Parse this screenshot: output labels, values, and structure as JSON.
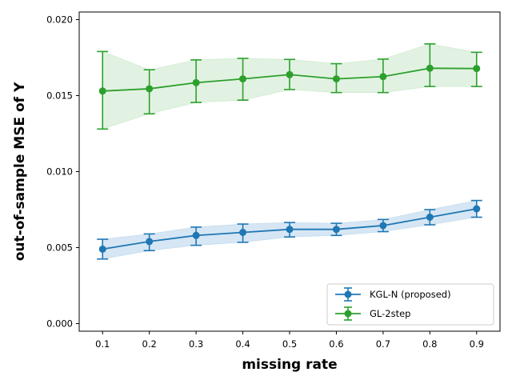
{
  "chart_data": {
    "type": "line",
    "title": "",
    "xlabel": "missing rate",
    "ylabel": "out-of-sample MSE of Y",
    "x": [
      0.1,
      0.2,
      0.3,
      0.4,
      0.5,
      0.6,
      0.7,
      0.8,
      0.9
    ],
    "x_tick_labels": [
      "0.1",
      "0.2",
      "0.3",
      "0.4",
      "0.5",
      "0.6",
      "0.7",
      "0.8",
      "0.9"
    ],
    "y_ticks": [
      0.0,
      0.005,
      0.01,
      0.015,
      0.02
    ],
    "y_tick_labels": [
      "0.000",
      "0.005",
      "0.010",
      "0.015",
      "0.020"
    ],
    "xlim": [
      0.05,
      0.95
    ],
    "ylim": [
      -0.0005,
      0.0205
    ],
    "grid": false,
    "legend_position": "lower-right",
    "series": [
      {
        "name": "KGL-N (proposed)",
        "color": "#1f77b4",
        "fill_color": "#d6e6f4",
        "values": [
          0.0049,
          0.0054,
          0.0058,
          0.006,
          0.0062,
          0.0062,
          0.00645,
          0.007,
          0.00755
        ],
        "err_low": [
          0.00425,
          0.0048,
          0.00515,
          0.00535,
          0.0057,
          0.0058,
          0.00605,
          0.0065,
          0.007
        ],
        "err_high": [
          0.00555,
          0.0059,
          0.00635,
          0.00655,
          0.00665,
          0.0066,
          0.00685,
          0.0075,
          0.0081
        ]
      },
      {
        "name": "GL-2step",
        "color": "#2ca02c",
        "fill_color": "#e2f2e2",
        "values": [
          0.0153,
          0.01545,
          0.01585,
          0.0161,
          0.01638,
          0.0161,
          0.01625,
          0.0168,
          0.01678
        ],
        "err_low": [
          0.0128,
          0.0138,
          0.01455,
          0.0147,
          0.0154,
          0.0152,
          0.0152,
          0.0156,
          0.0156
        ],
        "err_high": [
          0.0179,
          0.0167,
          0.01735,
          0.01745,
          0.01738,
          0.0171,
          0.0174,
          0.0184,
          0.01785
        ]
      }
    ]
  }
}
